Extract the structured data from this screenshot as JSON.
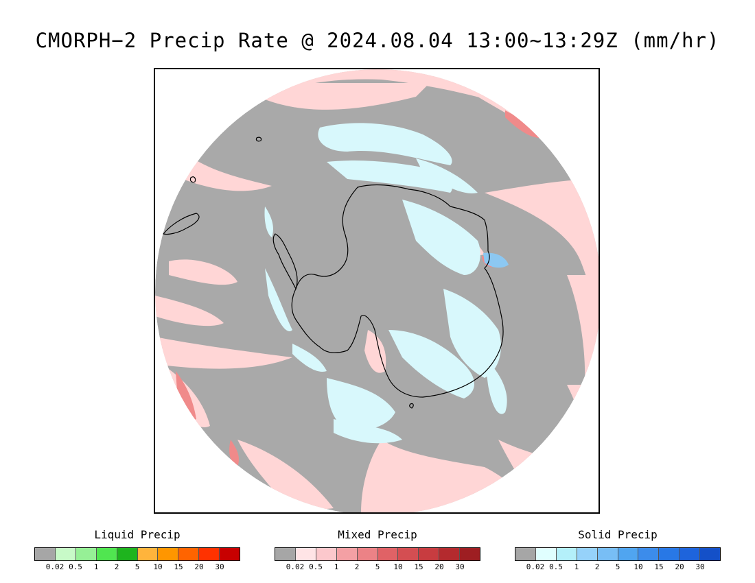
{
  "title": "CMORPH−2 Precip Rate @ 2024.08.04 13:00~13:29Z (mm/hr)",
  "map": {
    "projection": "south-polar-stereographic",
    "colors": {
      "no_precip": "#a9a9a9",
      "mixed_light": "#ffd6d6",
      "mixed_mod": "#f08a8a",
      "solid_light": "#d8f8fc",
      "solid_mod": "#8cc8f2",
      "coast": "#000000"
    }
  },
  "legends": [
    {
      "id": "liquid",
      "title": "Liquid Precip",
      "colors": [
        "#a6a6a6",
        "#c8fac8",
        "#96f096",
        "#50e650",
        "#1eb41e",
        "#ffb43c",
        "#ff9600",
        "#ff6400",
        "#ff3200",
        "#c80000"
      ],
      "ticks": [
        "0.02",
        "0.5",
        "1",
        "2",
        "5",
        "10",
        "15",
        "20",
        "30"
      ]
    },
    {
      "id": "mixed",
      "title": "Mixed Precip",
      "colors": [
        "#a6a6a6",
        "#ffe4e6",
        "#fcc8cc",
        "#f4a0a4",
        "#ec8286",
        "#e06266",
        "#d44e52",
        "#c83c40",
        "#b42a2e",
        "#9e1e22"
      ],
      "ticks": [
        "0.02",
        "0.5",
        "1",
        "2",
        "5",
        "10",
        "15",
        "20",
        "30"
      ]
    },
    {
      "id": "solid",
      "title": "Solid Precip",
      "colors": [
        "#a6a6a6",
        "#e0ffff",
        "#b4f0fa",
        "#96d2fa",
        "#78bef5",
        "#50a5f0",
        "#3c8ceb",
        "#2878e6",
        "#1e64dc",
        "#1450c8"
      ],
      "ticks": [
        "0.02",
        "0.5",
        "1",
        "2",
        "5",
        "10",
        "15",
        "20",
        "30"
      ]
    }
  ]
}
